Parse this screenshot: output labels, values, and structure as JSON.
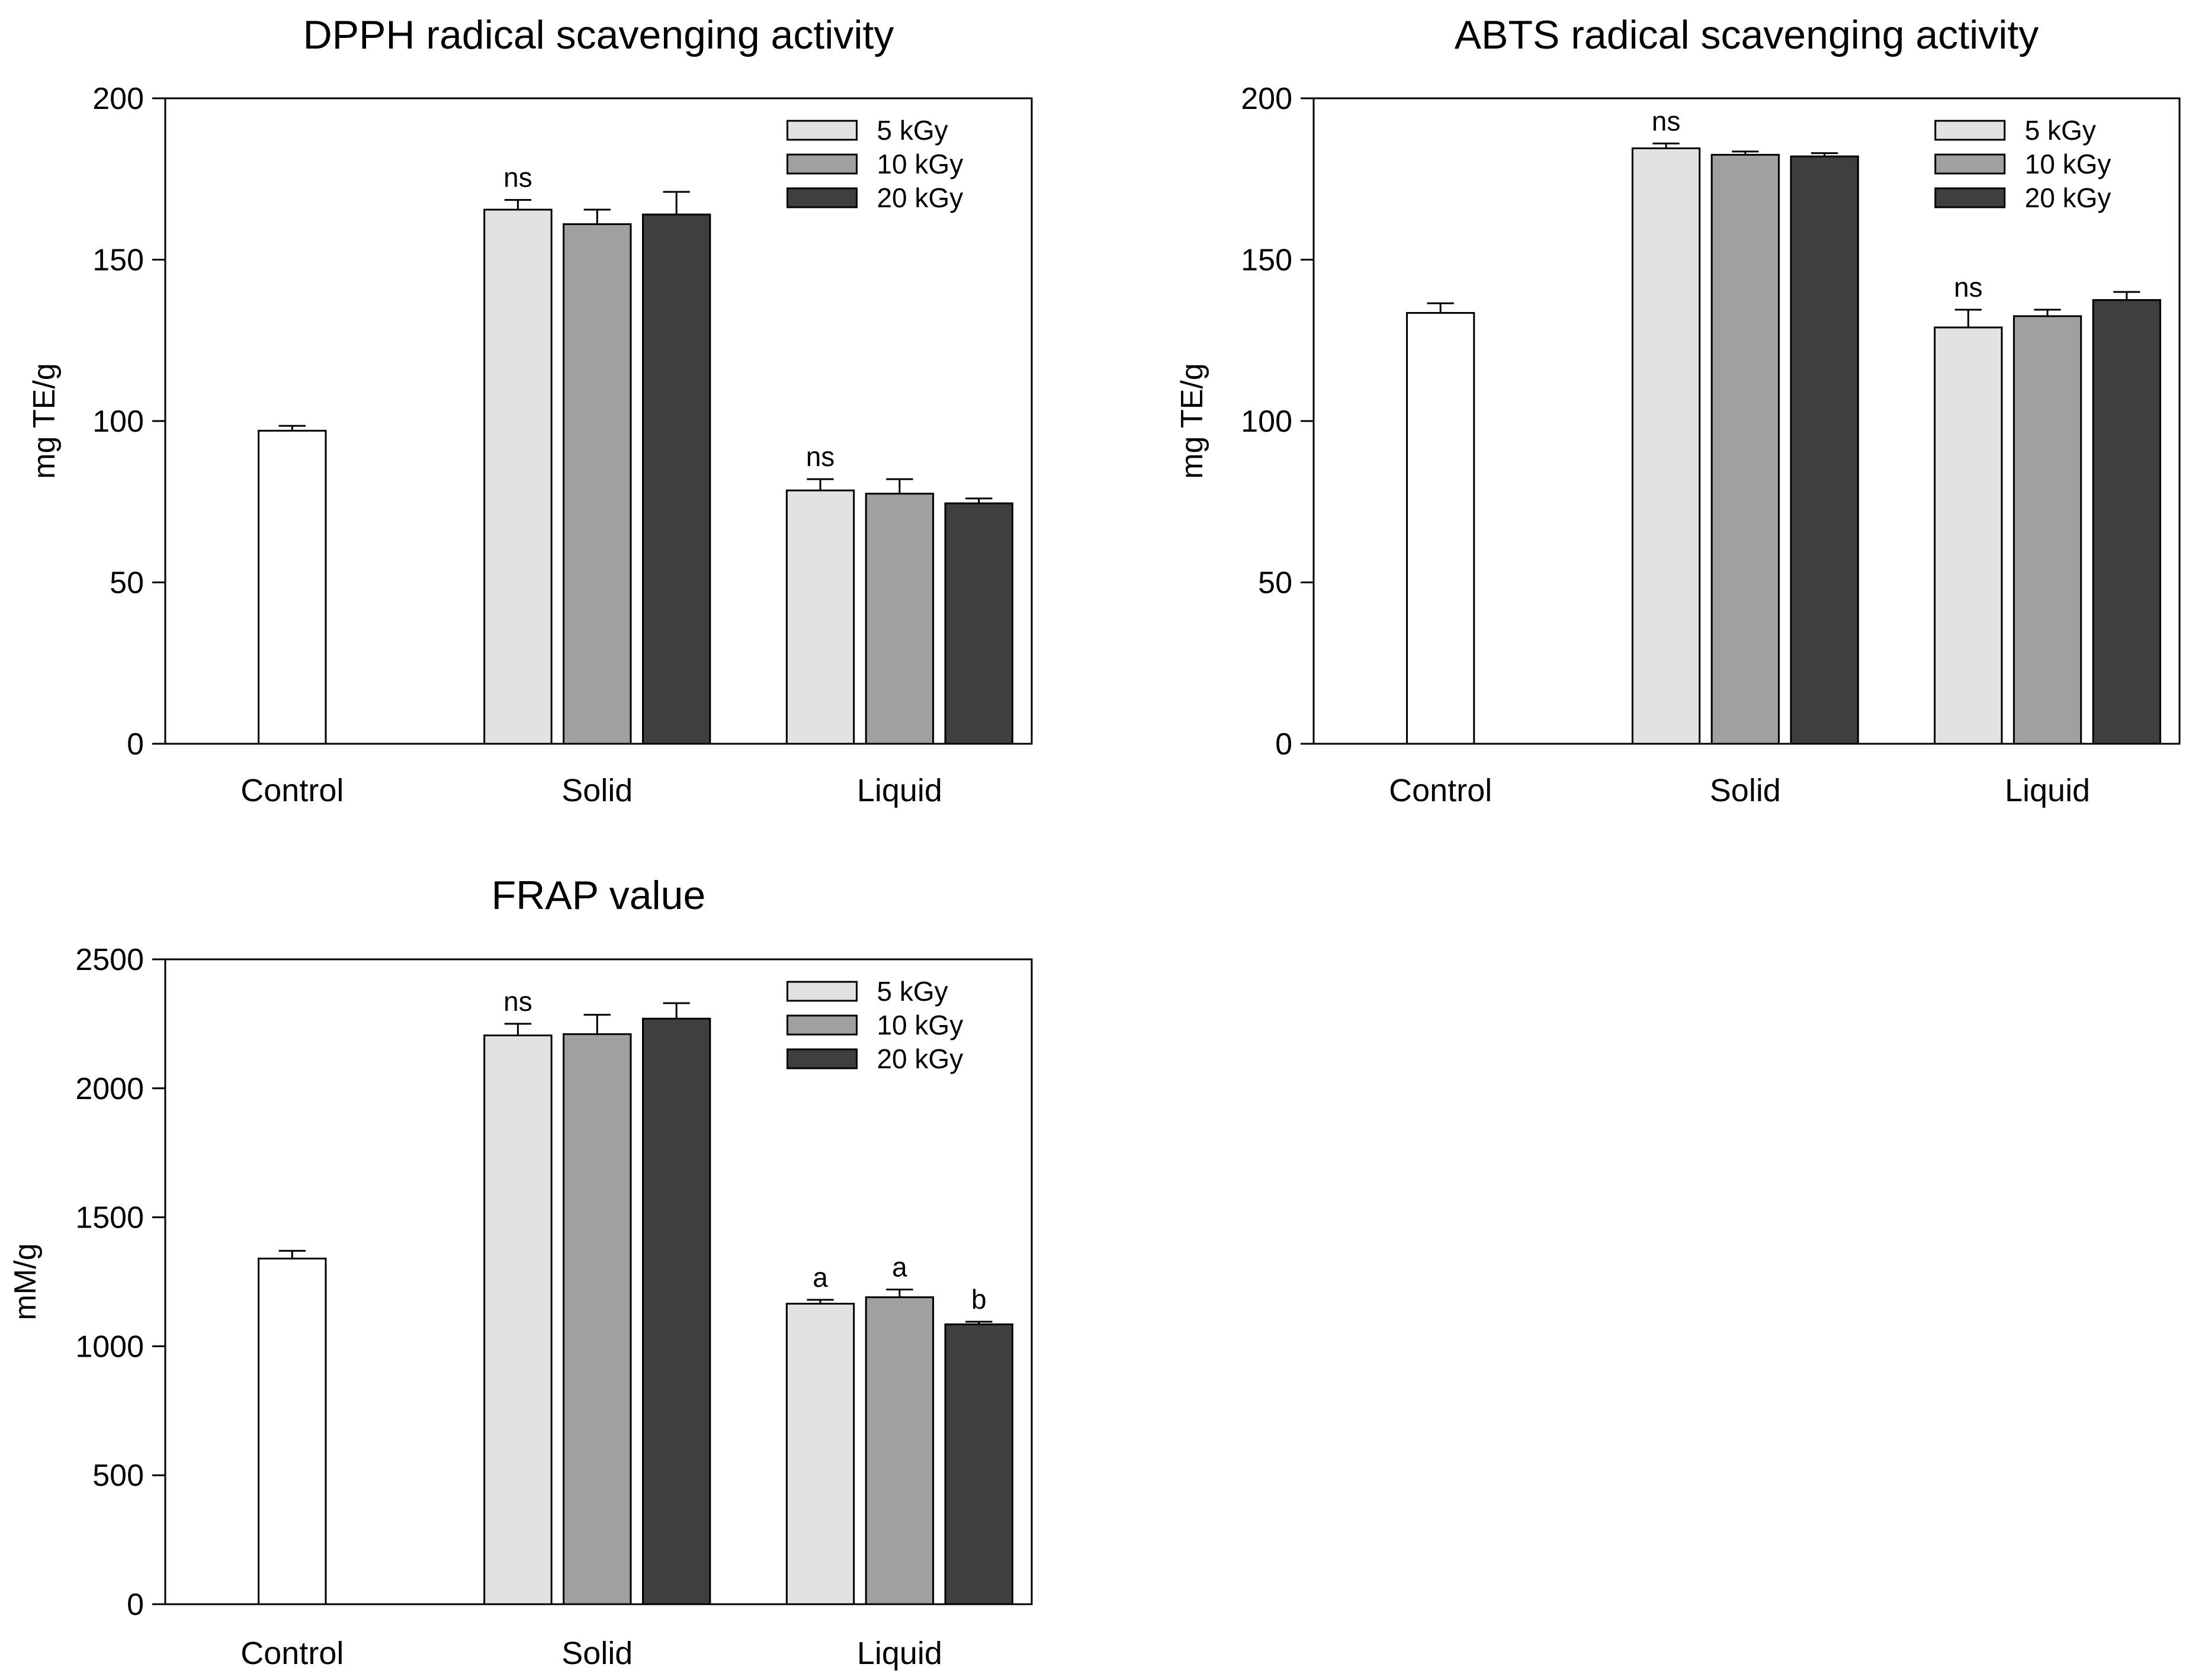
{
  "chart_data": [
    {
      "id": "dpph",
      "type": "bar",
      "title": "DPPH radical scavenging activity",
      "xlabel": "",
      "ylabel": "mg TE/g",
      "ylim": [
        0,
        200
      ],
      "yticks": [
        0,
        50,
        100,
        150,
        200
      ],
      "categories": [
        "Control",
        "Solid",
        "Liquid"
      ],
      "control": {
        "value": 97,
        "error": 1.5,
        "color": "#ffffff"
      },
      "series": [
        {
          "name": "5 kGy",
          "color": "#e2e2e2",
          "values": [
            null,
            165.5,
            78.5
          ],
          "errors": [
            null,
            3,
            3.5
          ]
        },
        {
          "name": "10 kGy",
          "color": "#a0a0a0",
          "values": [
            null,
            161,
            77.5
          ],
          "errors": [
            null,
            4.5,
            4.5
          ]
        },
        {
          "name": "20 kGy",
          "color": "#3f3f3f",
          "values": [
            null,
            164,
            74.5
          ],
          "errors": [
            null,
            7,
            1.5
          ]
        }
      ],
      "annotations": [
        {
          "category": 1,
          "series": 0,
          "text": "ns"
        },
        {
          "category": 2,
          "series": 0,
          "text": "ns"
        }
      ],
      "legend": "top-right"
    },
    {
      "id": "abts",
      "type": "bar",
      "title": "ABTS radical scavenging activity",
      "xlabel": "",
      "ylabel": "mg TE/g",
      "ylim": [
        0,
        200
      ],
      "yticks": [
        0,
        50,
        100,
        150,
        200
      ],
      "categories": [
        "Control",
        "Solid",
        "Liquid"
      ],
      "control": {
        "value": 133.5,
        "error": 3,
        "color": "#ffffff"
      },
      "series": [
        {
          "name": "5 kGy",
          "color": "#e2e2e2",
          "values": [
            null,
            184.5,
            129
          ],
          "errors": [
            null,
            1.5,
            5.5
          ]
        },
        {
          "name": "10 kGy",
          "color": "#a0a0a0",
          "values": [
            null,
            182.5,
            132.5
          ],
          "errors": [
            null,
            1,
            2
          ]
        },
        {
          "name": "20 kGy",
          "color": "#3f3f3f",
          "values": [
            null,
            182,
            137.5
          ],
          "errors": [
            null,
            1,
            2.5
          ]
        }
      ],
      "annotations": [
        {
          "category": 1,
          "series": 0,
          "text": "ns"
        },
        {
          "category": 2,
          "series": 0,
          "text": "ns"
        }
      ],
      "legend": "top-right"
    },
    {
      "id": "frap",
      "type": "bar",
      "title": "FRAP value",
      "xlabel": "",
      "ylabel": "mM/g",
      "ylim": [
        0,
        2500
      ],
      "yticks": [
        0,
        500,
        1000,
        1500,
        2000,
        2500
      ],
      "categories": [
        "Control",
        "Solid",
        "Liquid"
      ],
      "control": {
        "value": 1340,
        "error": 30,
        "color": "#ffffff"
      },
      "series": [
        {
          "name": "5 kGy",
          "color": "#e2e2e2",
          "values": [
            null,
            2205,
            1165
          ],
          "errors": [
            null,
            45,
            15
          ]
        },
        {
          "name": "10 kGy",
          "color": "#a0a0a0",
          "values": [
            null,
            2210,
            1190
          ],
          "errors": [
            null,
            75,
            30
          ]
        },
        {
          "name": "20 kGy",
          "color": "#3f3f3f",
          "values": [
            null,
            2270,
            1085
          ],
          "errors": [
            null,
            60,
            10
          ]
        }
      ],
      "annotations": [
        {
          "category": 1,
          "series": 0,
          "text": "ns"
        },
        {
          "category": 2,
          "series": 0,
          "text": "a"
        },
        {
          "category": 2,
          "series": 1,
          "text": "a"
        },
        {
          "category": 2,
          "series": 2,
          "text": "b"
        }
      ],
      "legend": "top-right"
    }
  ]
}
